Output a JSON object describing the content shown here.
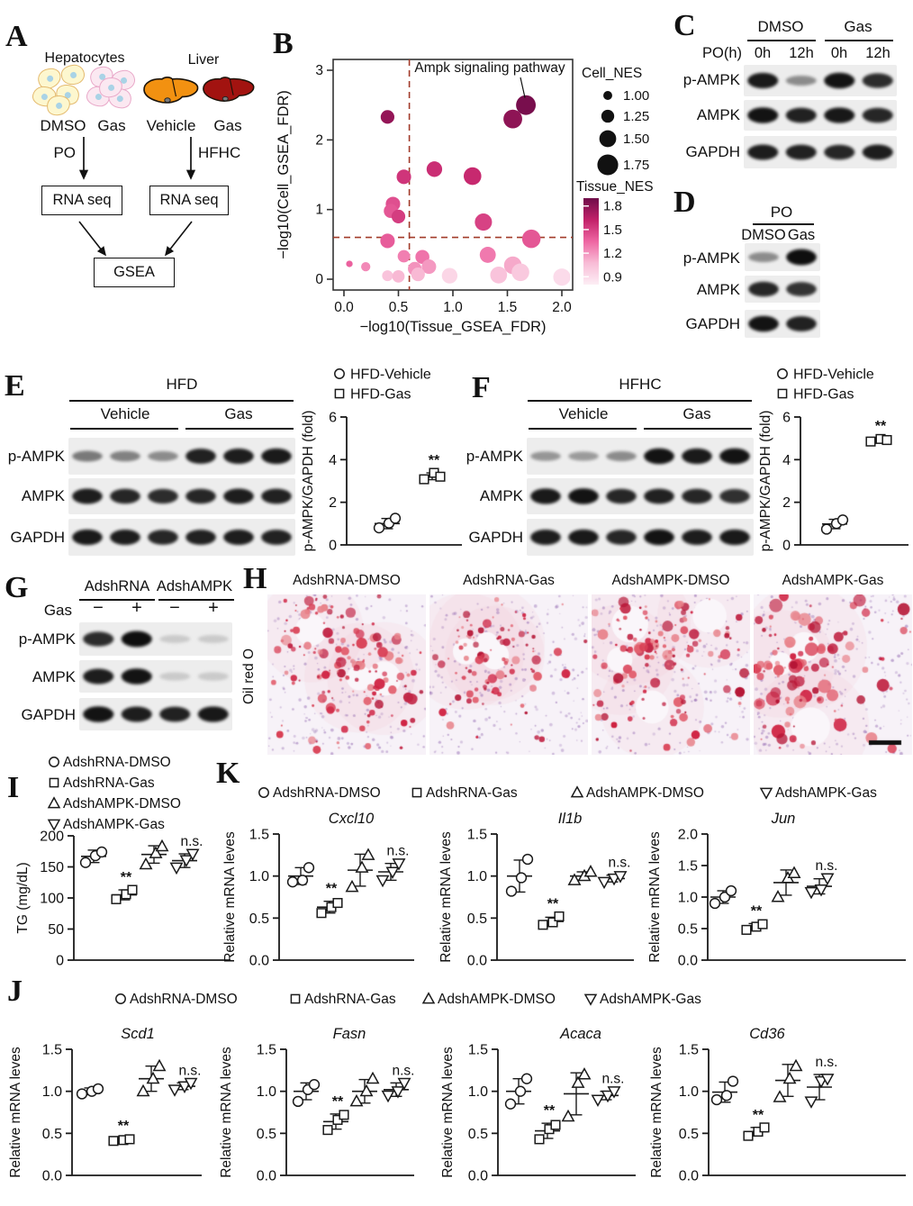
{
  "panel_labels": {
    "A": "A",
    "B": "B",
    "C": "C",
    "D": "D",
    "E": "E",
    "F": "F",
    "G": "G",
    "H": "H",
    "I": "I",
    "J": "J",
    "K": "K"
  },
  "panelA": {
    "hepatocytes_title": "Hepatocytes",
    "liver_title": "Liver",
    "cell_group_labels": [
      "DMSO",
      "Gas"
    ],
    "liver_group_labels": [
      "Vehicle",
      "Gas"
    ],
    "left_treatment": "PO",
    "right_treatment": "HFHC",
    "rna_seq_label": "RNA seq",
    "gsea_label": "GSEA"
  },
  "blots": {
    "C": {
      "group_headers": [
        "DMSO",
        "Gas"
      ],
      "lane_header": "PO(h)",
      "lane_labels": [
        "0h",
        "12h",
        "0h",
        "12h"
      ],
      "rows": [
        {
          "label": "p-AMPK",
          "intensities": [
            0.92,
            0.3,
            0.95,
            0.82
          ]
        },
        {
          "label": "AMPK",
          "intensities": [
            0.95,
            0.88,
            0.93,
            0.85
          ]
        },
        {
          "label": "GAPDH",
          "intensities": [
            0.9,
            0.88,
            0.85,
            0.9
          ]
        }
      ]
    },
    "D": {
      "condition_header": "PO",
      "lane_labels": [
        "DMSO",
        "Gas"
      ],
      "rows": [
        {
          "label": "p-AMPK",
          "intensities": [
            0.3,
            0.98
          ]
        },
        {
          "label": "AMPK",
          "intensities": [
            0.85,
            0.78
          ]
        },
        {
          "label": "GAPDH",
          "intensities": [
            0.95,
            0.88
          ]
        }
      ]
    },
    "E": {
      "condition_header": "HFD",
      "group_headers": [
        "Vehicle",
        "Gas"
      ],
      "rows": [
        {
          "label": "p-AMPK",
          "intensities": [
            0.4,
            0.36,
            0.3,
            0.88,
            0.9,
            0.92
          ]
        },
        {
          "label": "AMPK",
          "intensities": [
            0.9,
            0.85,
            0.82,
            0.85,
            0.9,
            0.88
          ]
        },
        {
          "label": "GAPDH",
          "intensities": [
            0.92,
            0.9,
            0.85,
            0.88,
            0.9,
            0.87
          ]
        }
      ]
    },
    "F": {
      "condition_header": "HFHC",
      "group_headers": [
        "Vehicle",
        "Gas"
      ],
      "rows": [
        {
          "label": "p-AMPK",
          "intensities": [
            0.25,
            0.22,
            0.3,
            0.95,
            0.92,
            0.95
          ]
        },
        {
          "label": "AMPK",
          "intensities": [
            0.92,
            0.95,
            0.85,
            0.88,
            0.85,
            0.8
          ]
        },
        {
          "label": "GAPDH",
          "intensities": [
            0.9,
            0.92,
            0.85,
            0.95,
            0.9,
            0.92
          ]
        }
      ]
    },
    "G": {
      "group_headers": [
        "AdshRNA",
        "AdshAMPK"
      ],
      "lane_header": "Gas",
      "lane_labels": [
        "−",
        "+",
        "−",
        "+"
      ],
      "rows": [
        {
          "label": "p-AMPK",
          "intensities": [
            0.82,
            0.98,
            0.1,
            0.09
          ]
        },
        {
          "label": "AMPK",
          "intensities": [
            0.9,
            0.95,
            0.13,
            0.16
          ]
        },
        {
          "label": "GAPDH",
          "intensities": [
            0.95,
            0.9,
            0.88,
            0.93
          ]
        }
      ]
    }
  },
  "panelH": {
    "row_label": "Oil red O",
    "images": [
      {
        "title": "AdshRNA-DMSO",
        "lipid_level": "high"
      },
      {
        "title": "AdshRNA-Gas",
        "lipid_level": "low"
      },
      {
        "title": "AdshAMPK-DMSO",
        "lipid_level": "high"
      },
      {
        "title": "AdshAMPK-Gas",
        "lipid_level": "high-large",
        "scale_bar": true
      }
    ]
  },
  "legends": {
    "hfd": [
      {
        "marker": "circle",
        "label": "HFD-Vehicle"
      },
      {
        "marker": "square",
        "label": "HFD-Gas"
      }
    ],
    "adsh": [
      {
        "marker": "circle",
        "label": "AdshRNA-DMSO"
      },
      {
        "marker": "square",
        "label": "AdshRNA-Gas"
      },
      {
        "marker": "triangle-up",
        "label": "AdshAMPK-DMSO"
      },
      {
        "marker": "triangle-down",
        "label": "AdshAMPK-Gas"
      }
    ]
  },
  "chart_data": [
    {
      "id": "B",
      "type": "scatter",
      "xlabel": "−log10(Tissue_GSEA_FDR)",
      "ylabel": "−log10(Cell_GSEA_FDR)",
      "xlim": [
        0,
        2
      ],
      "ylim": [
        0,
        3
      ],
      "xticks": [
        "0.0",
        "0.5",
        "1.0",
        "1.5",
        "2.0"
      ],
      "yticks": [
        "0",
        "1",
        "2",
        "3"
      ],
      "threshold_x": 0.6,
      "threshold_y": 0.6,
      "annotation": {
        "text": "Ampk signaling pathway",
        "x": 1.67,
        "y": 2.5
      },
      "size_legend": {
        "title": "Cell_NES",
        "values": [
          "1.00",
          "1.25",
          "1.50",
          "1.75"
        ],
        "nes": [
          1.0,
          1.25,
          1.5,
          1.75
        ]
      },
      "color_legend": {
        "title": "Tissue_NES",
        "ticks": [
          "1.8",
          "1.5",
          "1.2",
          "0.9"
        ],
        "tick_nes": [
          1.8,
          1.5,
          1.2,
          0.9
        ]
      },
      "points": [
        [
          0.4,
          2.33,
          1.3,
          1.78
        ],
        [
          1.55,
          2.3,
          1.62,
          1.8
        ],
        [
          1.67,
          2.5,
          1.68,
          1.87
        ],
        [
          0.55,
          1.47,
          1.35,
          1.55
        ],
        [
          0.83,
          1.58,
          1.42,
          1.58
        ],
        [
          1.18,
          1.48,
          1.55,
          1.6
        ],
        [
          0.45,
          1.08,
          1.35,
          1.45
        ],
        [
          0.43,
          0.98,
          1.32,
          1.42
        ],
        [
          0.5,
          0.9,
          1.3,
          1.52
        ],
        [
          1.28,
          0.82,
          1.52,
          1.5
        ],
        [
          0.4,
          0.55,
          1.35,
          1.4
        ],
        [
          1.72,
          0.58,
          1.6,
          1.42
        ],
        [
          0.55,
          0.33,
          1.22,
          1.28
        ],
        [
          0.72,
          0.32,
          1.32,
          1.32
        ],
        [
          1.32,
          0.35,
          1.45,
          1.3
        ],
        [
          0.05,
          0.22,
          0.85,
          1.38
        ],
        [
          0.2,
          0.18,
          1.02,
          1.25
        ],
        [
          0.65,
          0.15,
          1.3,
          1.22
        ],
        [
          0.78,
          0.18,
          1.35,
          1.2
        ],
        [
          1.55,
          0.2,
          1.55,
          1.15
        ],
        [
          1.62,
          0.1,
          1.55,
          1.02
        ],
        [
          0.4,
          0.05,
          1.12,
          1.05
        ],
        [
          0.5,
          0.04,
          1.22,
          1.1
        ],
        [
          0.68,
          0.07,
          1.3,
          1.1
        ],
        [
          0.97,
          0.05,
          1.42,
          0.95
        ],
        [
          1.42,
          0.06,
          1.5,
          1.05
        ],
        [
          2.0,
          0.03,
          1.52,
          0.92
        ]
      ]
    },
    {
      "id": "E",
      "type": "dotplot",
      "ylabel": "p-AMPK/GAPDH (fold)",
      "ylim": [
        0,
        6
      ],
      "yticks": [
        0,
        2,
        4,
        6
      ],
      "ydec": 0,
      "legend": "hfd",
      "groups": [
        {
          "marker": "circle",
          "values": [
            0.8,
            1.02,
            1.25
          ],
          "mean": 1.0,
          "sd": 0.24,
          "sig": ""
        },
        {
          "marker": "square",
          "values": [
            3.08,
            3.38,
            3.2
          ],
          "mean": 3.22,
          "sd": 0.16,
          "sig": "**"
        }
      ]
    },
    {
      "id": "F",
      "type": "dotplot",
      "ylabel": "p-AMPK/GAPDH (fold)",
      "ylim": [
        0,
        6
      ],
      "yticks": [
        0,
        2,
        4,
        6
      ],
      "ydec": 0,
      "legend": "hfd",
      "groups": [
        {
          "marker": "circle",
          "values": [
            0.74,
            1.0,
            1.17
          ],
          "mean": 0.98,
          "sd": 0.22,
          "sig": ""
        },
        {
          "marker": "square",
          "values": [
            4.85,
            4.97,
            4.92
          ],
          "mean": 4.91,
          "sd": 0.07,
          "sig": "**"
        }
      ]
    },
    {
      "id": "I",
      "type": "dotplot",
      "ylabel": "TG (mg/dL)",
      "ylim": [
        0,
        200
      ],
      "yticks": [
        0,
        50,
        100,
        150,
        200
      ],
      "ydec": 0,
      "legend": "adsh",
      "groups": [
        {
          "marker": "circle",
          "values": [
            157,
            168,
            174
          ],
          "mean": 167,
          "sd": 10,
          "sig": ""
        },
        {
          "marker": "square",
          "values": [
            98,
            106,
            113
          ],
          "mean": 105,
          "sd": 8,
          "sig": "**"
        },
        {
          "marker": "triangle-up",
          "values": [
            154,
            172,
            183
          ],
          "mean": 170,
          "sd": 14,
          "sig": ""
        },
        {
          "marker": "triangle-down",
          "values": [
            149,
            161,
            171
          ],
          "mean": 160,
          "sd": 11,
          "sig": "n.s."
        }
      ]
    },
    {
      "id": "K1",
      "type": "dotplot",
      "title": "Cxcl10",
      "ylabel": "Relative mRNA leves",
      "ylim": [
        0,
        1.5
      ],
      "yticks": [
        0,
        0.5,
        1,
        1.5
      ],
      "ydec": 1,
      "legend": "adsh",
      "groups": [
        {
          "marker": "circle",
          "values": [
            0.93,
            0.95,
            1.1
          ],
          "mean": 1.0,
          "sd": 0.1,
          "sig": ""
        },
        {
          "marker": "square",
          "values": [
            0.56,
            0.63,
            0.68
          ],
          "mean": 0.63,
          "sd": 0.07,
          "sig": "**"
        },
        {
          "marker": "triangle-up",
          "values": [
            0.87,
            1.1,
            1.25
          ],
          "mean": 1.07,
          "sd": 0.19,
          "sig": ""
        },
        {
          "marker": "triangle-down",
          "values": [
            0.95,
            1.05,
            1.15
          ],
          "mean": 1.05,
          "sd": 0.1,
          "sig": "n.s."
        }
      ]
    },
    {
      "id": "K2",
      "type": "dotplot",
      "title": "Il1b",
      "ylabel": "Relative mRNA leves",
      "ylim": [
        0,
        1.5
      ],
      "yticks": [
        0,
        0.5,
        1,
        1.5
      ],
      "ydec": 1,
      "legend": "adsh",
      "groups": [
        {
          "marker": "circle",
          "values": [
            0.82,
            0.98,
            1.2
          ],
          "mean": 1.0,
          "sd": 0.19,
          "sig": ""
        },
        {
          "marker": "square",
          "values": [
            0.42,
            0.45,
            0.52
          ],
          "mean": 0.46,
          "sd": 0.05,
          "sig": "**"
        },
        {
          "marker": "triangle-up",
          "values": [
            0.95,
            1.0,
            1.05
          ],
          "mean": 1.0,
          "sd": 0.05,
          "sig": ""
        },
        {
          "marker": "triangle-down",
          "values": [
            0.93,
            0.97,
            1.0
          ],
          "mean": 0.97,
          "sd": 0.04,
          "sig": "n.s."
        }
      ]
    },
    {
      "id": "K3",
      "type": "dotplot",
      "title": "Jun",
      "ylabel": "Relative mRNA leves",
      "ylim": [
        0,
        2
      ],
      "yticks": [
        0,
        0.5,
        1,
        1.5,
        2
      ],
      "ydec": 1,
      "legend": "adsh",
      "groups": [
        {
          "marker": "circle",
          "values": [
            0.9,
            1.0,
            1.1
          ],
          "mean": 1.0,
          "sd": 0.1,
          "sig": ""
        },
        {
          "marker": "square",
          "values": [
            0.48,
            0.53,
            0.57
          ],
          "mean": 0.53,
          "sd": 0.05,
          "sig": "**"
        },
        {
          "marker": "triangle-up",
          "values": [
            1.0,
            1.3,
            1.38
          ],
          "mean": 1.23,
          "sd": 0.2,
          "sig": ""
        },
        {
          "marker": "triangle-down",
          "values": [
            1.08,
            1.12,
            1.3
          ],
          "mean": 1.17,
          "sd": 0.12,
          "sig": "n.s."
        }
      ]
    },
    {
      "id": "J1",
      "type": "dotplot",
      "title": "Scd1",
      "ylabel": "Relative mRNA leves",
      "ylim": [
        0,
        1.5
      ],
      "yticks": [
        0,
        0.5,
        1,
        1.5
      ],
      "ydec": 1,
      "legend": "adsh",
      "groups": [
        {
          "marker": "circle",
          "values": [
            0.97,
            1.0,
            1.03
          ],
          "mean": 1.0,
          "sd": 0.04,
          "sig": ""
        },
        {
          "marker": "square",
          "values": [
            0.41,
            0.42,
            0.43
          ],
          "mean": 0.42,
          "sd": 0.02,
          "sig": "**"
        },
        {
          "marker": "triangle-up",
          "values": [
            1.0,
            1.15,
            1.3
          ],
          "mean": 1.15,
          "sd": 0.15,
          "sig": ""
        },
        {
          "marker": "triangle-down",
          "values": [
            1.02,
            1.06,
            1.1
          ],
          "mean": 1.06,
          "sd": 0.04,
          "sig": "n.s."
        }
      ]
    },
    {
      "id": "J2",
      "type": "dotplot",
      "title": "Fasn",
      "ylabel": "Relative mRNA leves",
      "ylim": [
        0,
        1.5
      ],
      "yticks": [
        0,
        0.5,
        1,
        1.5
      ],
      "ydec": 1,
      "legend": "adsh",
      "groups": [
        {
          "marker": "circle",
          "values": [
            0.88,
            1.02,
            1.08
          ],
          "mean": 1.0,
          "sd": 0.1,
          "sig": ""
        },
        {
          "marker": "square",
          "values": [
            0.54,
            0.66,
            0.72
          ],
          "mean": 0.64,
          "sd": 0.09,
          "sig": "**"
        },
        {
          "marker": "triangle-up",
          "values": [
            0.88,
            1.0,
            1.15
          ],
          "mean": 1.0,
          "sd": 0.14,
          "sig": ""
        },
        {
          "marker": "triangle-down",
          "values": [
            0.95,
            1.0,
            1.1
          ],
          "mean": 1.02,
          "sd": 0.08,
          "sig": "n.s."
        }
      ]
    },
    {
      "id": "J3",
      "type": "dotplot",
      "title": "Acaca",
      "ylabel": "Relative mRNA leves",
      "ylim": [
        0,
        1.5
      ],
      "yticks": [
        0,
        0.5,
        1,
        1.5
      ],
      "ydec": 1,
      "legend": "adsh",
      "groups": [
        {
          "marker": "circle",
          "values": [
            0.85,
            1.0,
            1.15
          ],
          "mean": 1.0,
          "sd": 0.15,
          "sig": ""
        },
        {
          "marker": "square",
          "values": [
            0.43,
            0.55,
            0.6
          ],
          "mean": 0.53,
          "sd": 0.09,
          "sig": "**"
        },
        {
          "marker": "triangle-up",
          "values": [
            0.7,
            1.1,
            1.2
          ],
          "mean": 0.97,
          "sd": 0.25,
          "sig": ""
        },
        {
          "marker": "triangle-down",
          "values": [
            0.9,
            0.95,
            1.0
          ],
          "mean": 0.95,
          "sd": 0.05,
          "sig": "n.s."
        }
      ]
    },
    {
      "id": "J4",
      "type": "dotplot",
      "title": "Cd36",
      "ylabel": "Relative mRNA leves",
      "ylim": [
        0,
        1.5
      ],
      "yticks": [
        0,
        0.5,
        1,
        1.5
      ],
      "ydec": 1,
      "legend": "adsh",
      "groups": [
        {
          "marker": "circle",
          "values": [
            0.9,
            0.95,
            1.12
          ],
          "mean": 0.99,
          "sd": 0.12,
          "sig": ""
        },
        {
          "marker": "square",
          "values": [
            0.47,
            0.52,
            0.57
          ],
          "mean": 0.52,
          "sd": 0.05,
          "sig": "**"
        },
        {
          "marker": "triangle-up",
          "values": [
            0.93,
            1.15,
            1.3
          ],
          "mean": 1.13,
          "sd": 0.19,
          "sig": ""
        },
        {
          "marker": "triangle-down",
          "values": [
            0.88,
            1.12,
            1.15
          ],
          "mean": 1.05,
          "sd": 0.15,
          "sig": "n.s."
        }
      ]
    }
  ]
}
